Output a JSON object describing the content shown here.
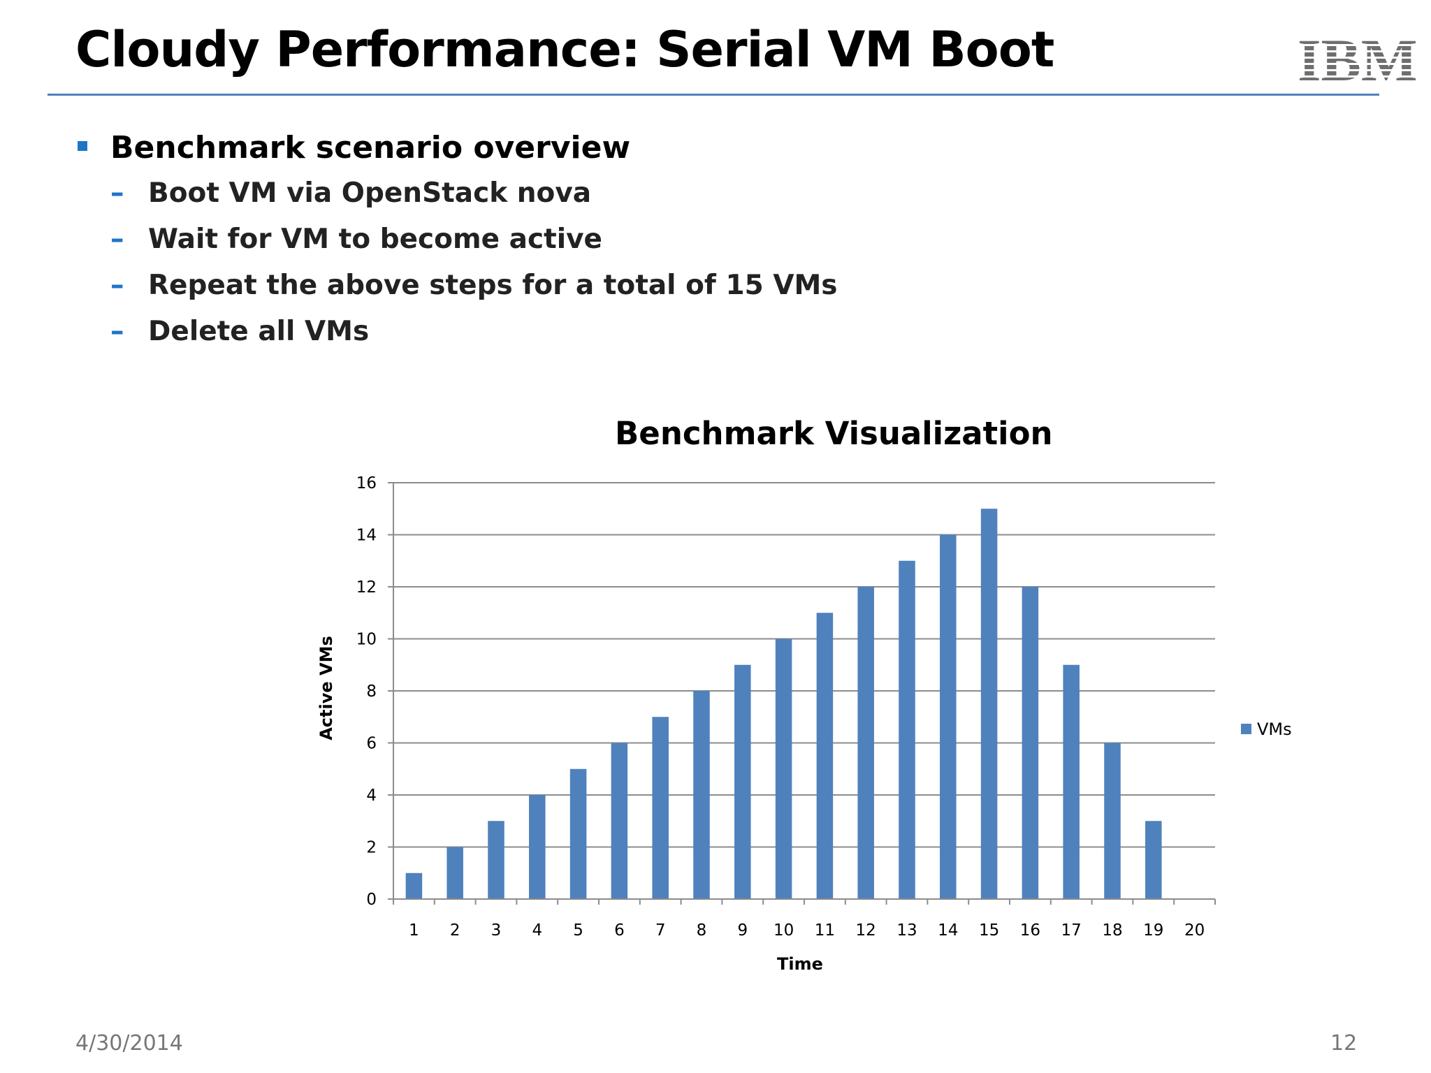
{
  "slide": {
    "title": "Cloudy Performance: Serial VM Boot",
    "logo_text": "IBM",
    "date": "4/30/2014",
    "page_number": "12"
  },
  "bullets": {
    "heading": "Benchmark scenario overview",
    "items": [
      "Boot VM via OpenStack nova",
      "Wait for VM to become active",
      "Repeat the above steps for a total of 15 VMs",
      "Delete all VMs"
    ]
  },
  "colors": {
    "accent": "#4f81bd",
    "bullet": "#1f74c6",
    "bar": "#4f81bd"
  },
  "chart_data": {
    "type": "bar",
    "title": "Benchmark Visualization",
    "xlabel": "Time",
    "ylabel": "Active VMs",
    "categories": [
      "1",
      "2",
      "3",
      "4",
      "5",
      "6",
      "7",
      "8",
      "9",
      "10",
      "11",
      "12",
      "13",
      "14",
      "15",
      "16",
      "17",
      "18",
      "19",
      "20"
    ],
    "series": [
      {
        "name": "VMs",
        "values": [
          1,
          2,
          3,
          4,
          5,
          6,
          7,
          8,
          9,
          10,
          11,
          12,
          13,
          14,
          15,
          12,
          9,
          6,
          3,
          0
        ]
      }
    ],
    "ylim": [
      0,
      16
    ],
    "yticks": [
      0,
      2,
      4,
      6,
      8,
      10,
      12,
      14,
      16
    ],
    "grid": true,
    "legend": "right"
  }
}
